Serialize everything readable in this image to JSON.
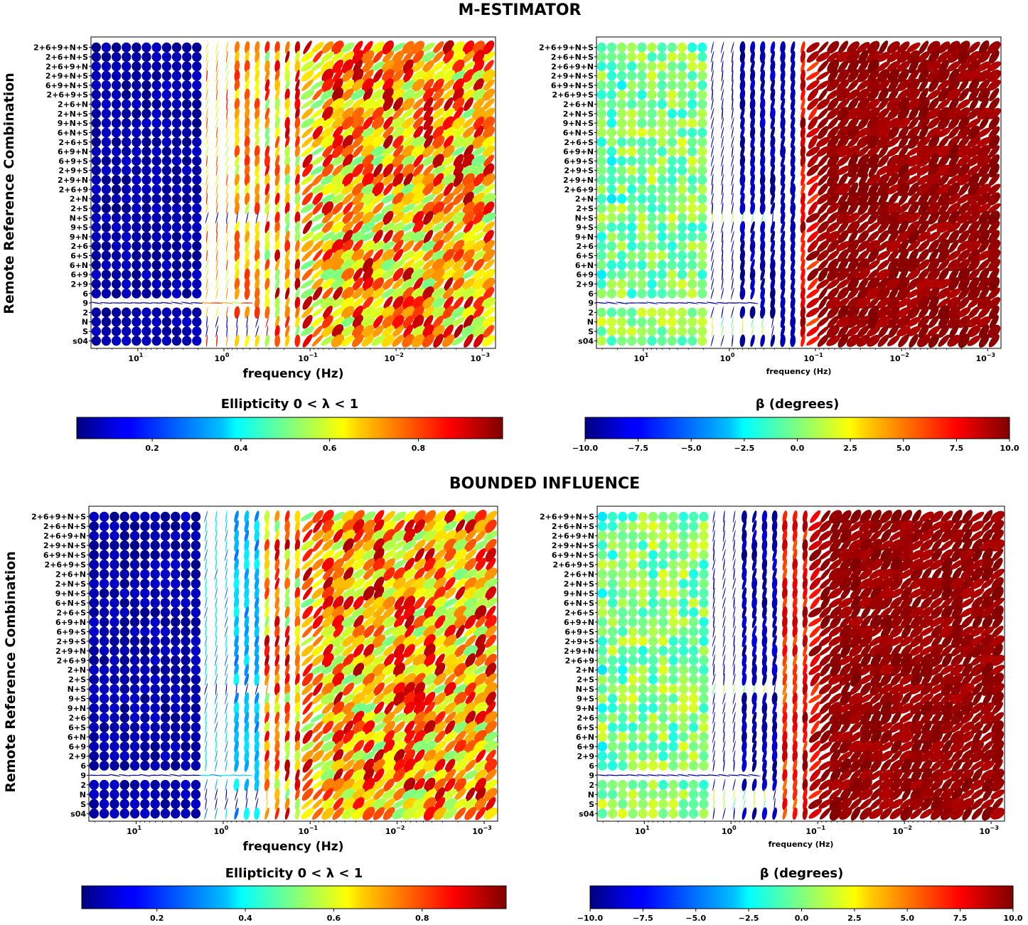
{
  "figure": {
    "section_titles": [
      "M-ESTIMATOR",
      "BOUNDED INFLUENCE"
    ],
    "colormap": [
      "#00007f",
      "#0000ff",
      "#007fff",
      "#00ffff",
      "#7fff7f",
      "#ffff00",
      "#ff7f00",
      "#ff0000",
      "#7f0000"
    ]
  },
  "chart_data": [
    {
      "type": "scatter",
      "subtype": "polarization-ellipse-matrix",
      "section": "M-ESTIMATOR",
      "variable": "ellipticity",
      "ylabel": "Remote Reference Combination",
      "xlabel": "frequency (Hz)",
      "xscale": "log-reversed",
      "xlim": [
        35,
        0.0007
      ],
      "xticks": [
        {
          "value": 10,
          "base": "10",
          "exp": "1"
        },
        {
          "value": 1,
          "base": "10",
          "exp": "0"
        },
        {
          "value": 0.1,
          "base": "10",
          "exp": "−1"
        },
        {
          "value": 0.01,
          "base": "10",
          "exp": "−2"
        },
        {
          "value": 0.001,
          "base": "10",
          "exp": "−3"
        }
      ],
      "rows": [
        "2+6+9+N+S",
        "2+6+N+S",
        "2+6+9+N",
        "2+9+N+S",
        "6+9+N+S",
        "2+6+9+S",
        "2+6+N",
        "2+N+S",
        "9+N+S",
        "6+N+S",
        "2+6+S",
        "6+9+N",
        "6+9+S",
        "2+9+S",
        "2+9+N",
        "2+6+9",
        "2+N",
        "2+S",
        "N+S",
        "9+S",
        "9+N",
        "2+6",
        "6+S",
        "6+N",
        "6+9",
        "2+9",
        "6",
        "9",
        "2",
        "N",
        "S",
        "s04"
      ],
      "n_freq": 40,
      "clim": [
        0.03,
        0.99
      ],
      "colorbar_title": "Ellipticity 0 < λ < 1",
      "colorbar_ticks": [
        "0.2",
        "0.4",
        "0.6",
        "0.8"
      ],
      "colorbar_tick_values": [
        0.2,
        0.4,
        0.6,
        0.8
      ]
    },
    {
      "type": "scatter",
      "subtype": "polarization-ellipse-matrix",
      "section": "M-ESTIMATOR",
      "variable": "beta",
      "ylabel": "",
      "xlabel": "frequency (Hz)",
      "xscale": "log-reversed",
      "xlim": [
        35,
        0.0007
      ],
      "xticks": [
        {
          "value": 10,
          "base": "10",
          "exp": "1"
        },
        {
          "value": 1,
          "base": "10",
          "exp": "0"
        },
        {
          "value": 0.1,
          "base": "10",
          "exp": "−1"
        },
        {
          "value": 0.01,
          "base": "10",
          "exp": "−2"
        },
        {
          "value": 0.001,
          "base": "10",
          "exp": "−3"
        }
      ],
      "rows": [
        "2+6+9+N+S",
        "2+6+N+S",
        "2+6+9+N",
        "2+9+N+S",
        "6+9+N+S",
        "2+6+9+S",
        "2+6+N",
        "2+N+S",
        "9+N+S",
        "6+N+S",
        "2+6+S",
        "6+9+N",
        "6+9+S",
        "2+9+S",
        "2+9+N",
        "2+6+9",
        "2+N",
        "2+S",
        "N+S",
        "9+S",
        "9+N",
        "2+6",
        "6+S",
        "6+N",
        "6+9",
        "2+9",
        "6",
        "9",
        "2",
        "N",
        "S",
        "s04"
      ],
      "n_freq": 40,
      "clim": [
        -10,
        10
      ],
      "colorbar_title": "β (degrees)",
      "colorbar_ticks": [
        "−10.0",
        "−7.5",
        "−5.0",
        "−2.5",
        "0.0",
        "2.5",
        "5.0",
        "7.5",
        "10.0"
      ],
      "colorbar_tick_values": [
        -10,
        -7.5,
        -5,
        -2.5,
        0,
        2.5,
        5,
        7.5,
        10
      ]
    },
    {
      "type": "scatter",
      "subtype": "polarization-ellipse-matrix",
      "section": "BOUNDED INFLUENCE",
      "variable": "ellipticity",
      "ylabel": "Remote Reference Combination",
      "xlabel": "frequency (Hz)",
      "xscale": "log-reversed",
      "xlim": [
        35,
        0.0007
      ],
      "xticks": [
        {
          "value": 10,
          "base": "10",
          "exp": "1"
        },
        {
          "value": 1,
          "base": "10",
          "exp": "0"
        },
        {
          "value": 0.1,
          "base": "10",
          "exp": "−1"
        },
        {
          "value": 0.01,
          "base": "10",
          "exp": "−2"
        },
        {
          "value": 0.001,
          "base": "10",
          "exp": "−3"
        }
      ],
      "rows": [
        "2+6+9+N+S",
        "2+6+N+S",
        "2+6+9+N",
        "2+9+N+S",
        "6+9+N+S",
        "2+6+9+S",
        "2+6+N",
        "2+N+S",
        "9+N+S",
        "6+N+S",
        "2+6+S",
        "6+9+N",
        "6+9+S",
        "2+9+S",
        "2+9+N",
        "2+6+9",
        "2+N",
        "2+S",
        "N+S",
        "9+S",
        "9+N",
        "2+6",
        "6+S",
        "6+N",
        "6+9",
        "2+9",
        "6",
        "9",
        "2",
        "N",
        "S",
        "s04"
      ],
      "n_freq": 40,
      "clim": [
        0.03,
        0.99
      ],
      "colorbar_title": "Ellipticity 0 < λ < 1",
      "colorbar_ticks": [
        "0.2",
        "0.4",
        "0.6",
        "0.8"
      ],
      "colorbar_tick_values": [
        0.2,
        0.4,
        0.6,
        0.8
      ]
    },
    {
      "type": "scatter",
      "subtype": "polarization-ellipse-matrix",
      "section": "BOUNDED INFLUENCE",
      "variable": "beta",
      "ylabel": "",
      "xlabel": "frequency (Hz)",
      "xscale": "log-reversed",
      "xlim": [
        35,
        0.0007
      ],
      "xticks": [
        {
          "value": 10,
          "base": "10",
          "exp": "1"
        },
        {
          "value": 1,
          "base": "10",
          "exp": "0"
        },
        {
          "value": 0.1,
          "base": "10",
          "exp": "−1"
        },
        {
          "value": 0.01,
          "base": "10",
          "exp": "−2"
        },
        {
          "value": 0.001,
          "base": "10",
          "exp": "−3"
        }
      ],
      "rows": [
        "2+6+9+N+S",
        "2+6+N+S",
        "2+6+9+N",
        "2+9+N+S",
        "6+9+N+S",
        "2+6+9+S",
        "2+6+N",
        "2+N+S",
        "9+N+S",
        "6+N+S",
        "2+6+S",
        "6+9+N",
        "6+9+S",
        "2+9+S",
        "2+9+N",
        "2+6+9",
        "2+N",
        "2+S",
        "N+S",
        "9+S",
        "9+N",
        "2+6",
        "6+S",
        "6+N",
        "6+9",
        "2+9",
        "6",
        "9",
        "2",
        "N",
        "S",
        "s04"
      ],
      "n_freq": 40,
      "clim": [
        -10,
        10
      ],
      "colorbar_title": "β (degrees)",
      "colorbar_ticks": [
        "−10.0",
        "−7.5",
        "−5.0",
        "−2.5",
        "0.0",
        "2.5",
        "5.0",
        "7.5",
        "10.0"
      ],
      "colorbar_tick_values": [
        -10,
        -7.5,
        -5,
        -2.5,
        0,
        2.5,
        5,
        7.5,
        10
      ]
    }
  ]
}
